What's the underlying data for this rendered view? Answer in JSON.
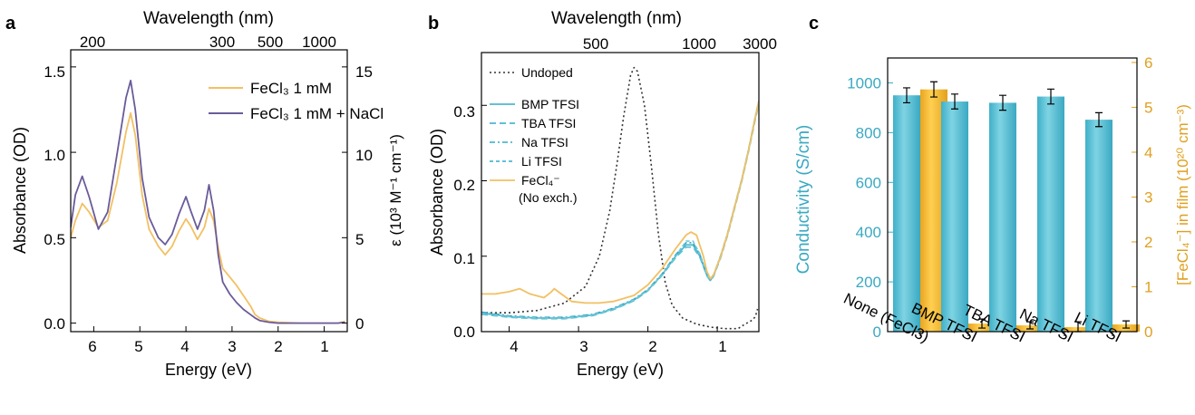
{
  "figure": {
    "panel_a_letter": "a",
    "panel_b_letter": "b",
    "panel_c_letter": "c"
  },
  "chart_data": [
    {
      "panel": "a",
      "type": "line",
      "xlabel": "Energy (eV)",
      "x_top_label": "Wavelength (nm)",
      "ylabel": "Absorbance (OD)",
      "y_right_label": "ε (10³ M⁻¹ cm⁻¹)",
      "xlim": [
        6.5,
        0.5
      ],
      "ylim": [
        -0.05,
        1.6
      ],
      "y_right_lim": [
        -0.5,
        16
      ],
      "x_ticks": [
        "6",
        "5",
        "4",
        "3",
        "2",
        "1"
      ],
      "y_ticks": [
        "0.0",
        "0.5",
        "1.0",
        "1.5"
      ],
      "y_right_ticks": [
        "0",
        "5",
        "10",
        "15"
      ],
      "x_top_ticks": [
        "200",
        "300",
        "500",
        "1000"
      ],
      "legend": [
        "FeCl₃ 1 mM",
        "FeCl₃ 1 mM + NaCl"
      ],
      "legend_position": "top-right",
      "colors": {
        "fecl3": "#f2c063",
        "nacl": "#6a5b9a"
      },
      "series": [
        {
          "name": "FeCl₃ 1 mM",
          "x": [
            6.5,
            6.4,
            6.25,
            6.1,
            5.9,
            5.7,
            5.5,
            5.3,
            5.2,
            5.1,
            4.95,
            4.8,
            4.6,
            4.45,
            4.3,
            4.15,
            4.0,
            3.9,
            3.75,
            3.6,
            3.5,
            3.4,
            3.3,
            3.2,
            3.05,
            2.9,
            2.75,
            2.6,
            2.5,
            2.4,
            2.2,
            2.0,
            1.5,
            1.0,
            0.7,
            0.55
          ],
          "y": [
            0.5,
            0.6,
            0.7,
            0.65,
            0.56,
            0.6,
            0.82,
            1.12,
            1.23,
            1.1,
            0.75,
            0.55,
            0.45,
            0.4,
            0.45,
            0.54,
            0.61,
            0.57,
            0.49,
            0.56,
            0.67,
            0.6,
            0.44,
            0.32,
            0.27,
            0.22,
            0.16,
            0.1,
            0.05,
            0.03,
            0.01,
            0.005,
            0.0,
            0.0,
            0.0,
            0.01
          ]
        },
        {
          "name": "FeCl₃ 1 mM + NaCl",
          "x": [
            6.5,
            6.4,
            6.25,
            6.1,
            5.9,
            5.7,
            5.5,
            5.3,
            5.2,
            5.1,
            4.95,
            4.8,
            4.6,
            4.45,
            4.3,
            4.15,
            4.0,
            3.9,
            3.75,
            3.6,
            3.5,
            3.4,
            3.3,
            3.2,
            3.05,
            2.9,
            2.75,
            2.6,
            2.5,
            2.4,
            2.2,
            2.0,
            1.5,
            1.0,
            0.7,
            0.55
          ],
          "y": [
            0.56,
            0.75,
            0.86,
            0.74,
            0.55,
            0.65,
            0.98,
            1.32,
            1.42,
            1.25,
            0.85,
            0.62,
            0.5,
            0.46,
            0.52,
            0.64,
            0.74,
            0.66,
            0.55,
            0.66,
            0.81,
            0.66,
            0.4,
            0.24,
            0.17,
            0.12,
            0.08,
            0.05,
            0.03,
            0.015,
            0.005,
            0.0,
            0.0,
            0.0,
            0.0,
            0.005
          ]
        }
      ]
    },
    {
      "panel": "b",
      "type": "line",
      "xlabel": "Energy (eV)",
      "x_top_label": "Wavelength (nm)",
      "ylabel": "Absorbance (OD)",
      "xlim": [
        4.4,
        0.4
      ],
      "ylim": [
        0,
        0.37
      ],
      "x_ticks": [
        "4",
        "3",
        "2",
        "1"
      ],
      "y_ticks": [
        "0.0",
        "0.1",
        "0.2",
        "0.3"
      ],
      "x_top_ticks": [
        "500",
        "1000",
        "3000"
      ],
      "legend": [
        "Undoped",
        "BMP TFSI",
        "TBA TFSI",
        "Na TFSI",
        "Li TFSI",
        "FeCl₄⁻",
        "(No exch.)"
      ],
      "legend_position": "top-left",
      "colors": {
        "undoped": "#333333",
        "tfsi": "#4fb8cf",
        "fecl4": "#f2c063"
      },
      "series": [
        {
          "name": "Undoped",
          "x": [
            4.4,
            4.0,
            3.6,
            3.2,
            2.9,
            2.7,
            2.55,
            2.45,
            2.35,
            2.25,
            2.2,
            2.15,
            2.05,
            1.95,
            1.85,
            1.75,
            1.65,
            1.5,
            1.3,
            1.1,
            0.9,
            0.7,
            0.6,
            0.5,
            0.45,
            0.42
          ],
          "y": [
            0.025,
            0.025,
            0.028,
            0.038,
            0.06,
            0.1,
            0.16,
            0.22,
            0.285,
            0.34,
            0.35,
            0.345,
            0.3,
            0.22,
            0.13,
            0.065,
            0.035,
            0.018,
            0.01,
            0.006,
            0.004,
            0.004,
            0.01,
            0.015,
            0.02,
            0.03
          ]
        },
        {
          "name": "BMP TFSI",
          "x": [
            4.4,
            4.0,
            3.6,
            3.2,
            2.8,
            2.5,
            2.2,
            2.0,
            1.8,
            1.6,
            1.45,
            1.35,
            1.25,
            1.15,
            1.1,
            1.05,
            0.95,
            0.85,
            0.75,
            0.65,
            0.55,
            0.45,
            0.4
          ],
          "y": [
            0.025,
            0.02,
            0.018,
            0.018,
            0.022,
            0.03,
            0.042,
            0.055,
            0.075,
            0.1,
            0.115,
            0.115,
            0.1,
            0.075,
            0.068,
            0.075,
            0.1,
            0.13,
            0.165,
            0.2,
            0.24,
            0.285,
            0.305
          ]
        },
        {
          "name": "TBA TFSI",
          "x": [
            4.4,
            4.0,
            3.6,
            3.2,
            2.8,
            2.5,
            2.2,
            2.0,
            1.8,
            1.6,
            1.45,
            1.35,
            1.25,
            1.15,
            1.1,
            1.05,
            0.95,
            0.85,
            0.75,
            0.65,
            0.55,
            0.45,
            0.4
          ],
          "y": [
            0.023,
            0.019,
            0.017,
            0.017,
            0.021,
            0.029,
            0.041,
            0.054,
            0.074,
            0.098,
            0.112,
            0.112,
            0.098,
            0.074,
            0.067,
            0.074,
            0.098,
            0.128,
            0.163,
            0.198,
            0.238,
            0.282,
            0.302
          ]
        },
        {
          "name": "Na TFSI",
          "x": [
            4.4,
            4.0,
            3.6,
            3.2,
            2.8,
            2.5,
            2.2,
            2.0,
            1.8,
            1.6,
            1.45,
            1.35,
            1.25,
            1.15,
            1.1,
            1.05,
            0.95,
            0.85,
            0.75,
            0.65,
            0.55,
            0.45,
            0.4
          ],
          "y": [
            0.026,
            0.021,
            0.019,
            0.019,
            0.023,
            0.031,
            0.043,
            0.056,
            0.076,
            0.102,
            0.118,
            0.118,
            0.102,
            0.076,
            0.069,
            0.076,
            0.101,
            0.131,
            0.166,
            0.201,
            0.241,
            0.286,
            0.306
          ]
        },
        {
          "name": "Li TFSI",
          "x": [
            4.4,
            4.0,
            3.6,
            3.2,
            2.8,
            2.5,
            2.2,
            2.0,
            1.8,
            1.6,
            1.45,
            1.35,
            1.25,
            1.15,
            1.1,
            1.05,
            0.95,
            0.85,
            0.75,
            0.65,
            0.55,
            0.45,
            0.4
          ],
          "y": [
            0.024,
            0.02,
            0.018,
            0.018,
            0.022,
            0.03,
            0.042,
            0.055,
            0.075,
            0.1,
            0.12,
            0.12,
            0.103,
            0.076,
            0.069,
            0.076,
            0.1,
            0.13,
            0.165,
            0.2,
            0.24,
            0.285,
            0.305
          ]
        },
        {
          "name": "FeCl₄⁻ (No exch.)",
          "x": [
            4.4,
            4.2,
            4.0,
            3.85,
            3.7,
            3.5,
            3.4,
            3.35,
            3.25,
            3.1,
            2.9,
            2.7,
            2.5,
            2.2,
            2.0,
            1.8,
            1.6,
            1.45,
            1.38,
            1.3,
            1.2,
            1.15,
            1.1,
            1.05,
            0.95,
            0.85,
            0.75,
            0.65,
            0.55,
            0.45,
            0.4
          ],
          "y": [
            0.05,
            0.05,
            0.053,
            0.057,
            0.05,
            0.045,
            0.052,
            0.057,
            0.05,
            0.04,
            0.038,
            0.038,
            0.04,
            0.048,
            0.062,
            0.083,
            0.11,
            0.128,
            0.132,
            0.128,
            0.1,
            0.08,
            0.07,
            0.076,
            0.1,
            0.13,
            0.165,
            0.2,
            0.24,
            0.285,
            0.305
          ]
        }
      ]
    },
    {
      "panel": "c",
      "type": "bar",
      "categories": [
        "None (FeCl3)",
        "BMP TFSI",
        "TBA TFSI",
        "Na TFSI",
        "Li TFSI"
      ],
      "ylabel": "Conductivity (S/cm)",
      "y_right_label": "[FeCl₄⁻] in film (10²⁰ cm⁻³)",
      "ylim": [
        0,
        1100
      ],
      "y_right_lim": [
        0,
        6.1
      ],
      "y_ticks": [
        "0",
        "200",
        "400",
        "600",
        "800",
        "1000"
      ],
      "y_right_ticks": [
        "0",
        "1",
        "2",
        "3",
        "4",
        "5",
        "6"
      ],
      "colors": {
        "conductivity": "#4fbad0",
        "fecl4": "#f2b43a"
      },
      "series": [
        {
          "name": "Conductivity",
          "values": [
            950,
            925,
            920,
            945,
            852
          ],
          "errors": [
            30,
            30,
            30,
            30,
            28
          ]
        },
        {
          "name": "[FeCl₄⁻]",
          "values": [
            5.4,
            0.18,
            0.14,
            0.1,
            0.16
          ],
          "errors": [
            0.17,
            0.1,
            0.08,
            0.12,
            0.08
          ]
        }
      ]
    }
  ]
}
